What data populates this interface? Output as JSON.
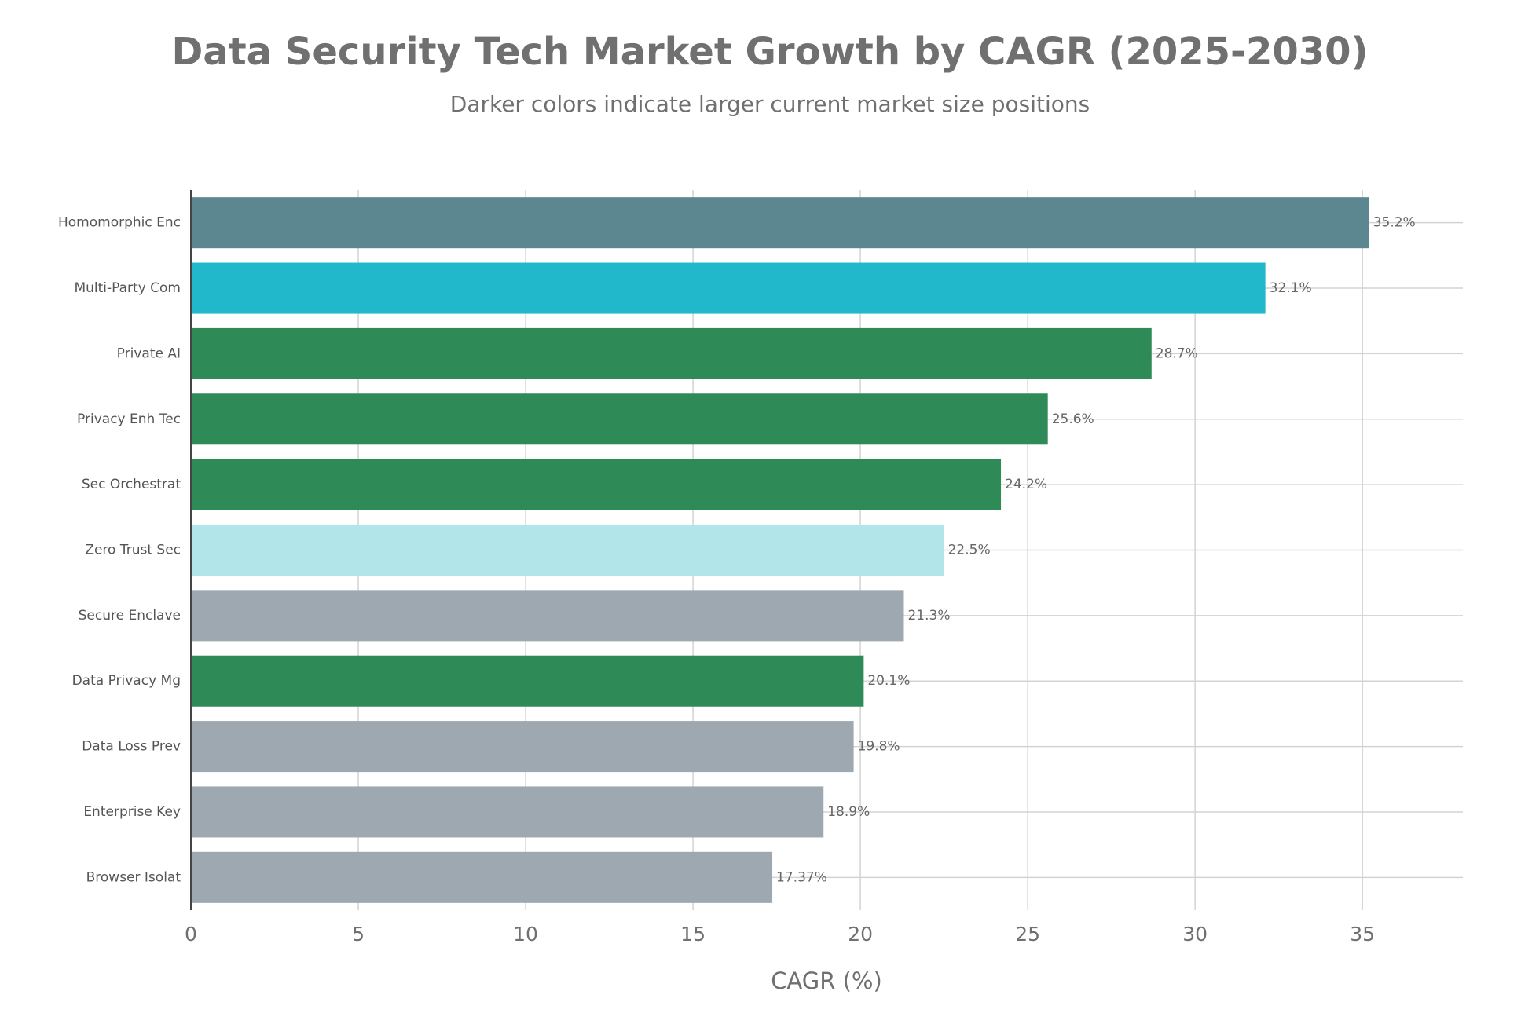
{
  "chart_data": {
    "type": "hbar",
    "title": "Data Security Tech Market Growth by CAGR (2025-2030)",
    "subtitle": "Darker colors indicate larger current market size positions",
    "x_label": "CAGR (%)",
    "categories": [
      "Homomorphic Enc",
      "Multi-Party Com",
      "Private AI",
      "Privacy Enh Tec",
      "Sec Orchestrat",
      "Zero Trust Sec",
      "Secure Enclave",
      "Data Privacy Mg",
      "Data Loss Prev",
      "Enterprise Key",
      "Browser Isolat"
    ],
    "values": [
      35.2,
      32.1,
      28.7,
      25.6,
      24.2,
      22.5,
      21.3,
      20.1,
      19.8,
      18.9,
      17.37
    ],
    "value_labels": [
      "35.2%",
      "32.1%",
      "28.7%",
      "25.6%",
      "24.2%",
      "22.5%",
      "21.3%",
      "20.1%",
      "19.8%",
      "18.9%",
      "17.37%"
    ],
    "colors": [
      "#5d8790",
      "#22b8cc",
      "#2e8b57",
      "#2e8b57",
      "#2e8b57",
      "#b2e5ea",
      "#9ea8b0",
      "#2e8b57",
      "#9ea8b0",
      "#9ea8b0",
      "#9ea8b0"
    ],
    "xlim": [
      0,
      38
    ],
    "xticks": [
      0,
      5,
      10,
      15,
      20,
      25,
      30,
      35
    ],
    "grid": true
  }
}
